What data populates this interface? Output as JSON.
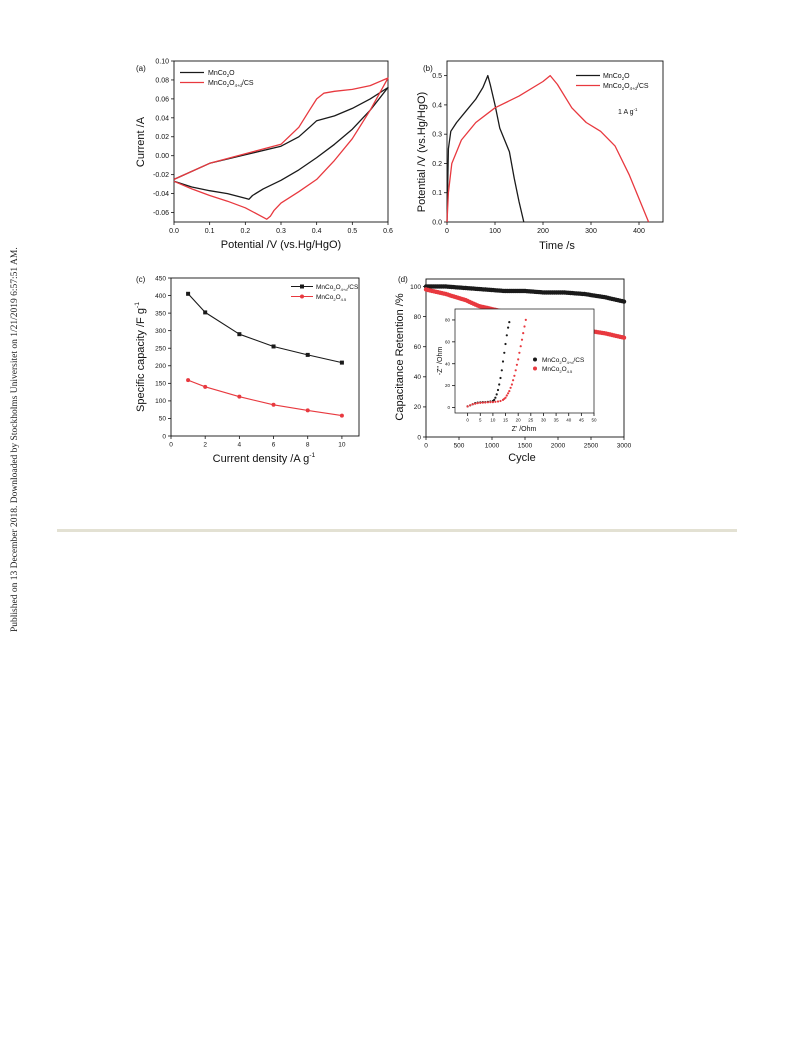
{
  "side_note": "Published on 13 December 2018. Downloaded by Stockholms Universitet on 1/21/2019 6:57:51 AM.",
  "colors": {
    "black_series": "#1a1a1a",
    "red_series": "#e8393f",
    "divider": "#e3e1d3"
  },
  "chart_data": [
    {
      "type": "line",
      "panel_label": "(a)",
      "xlabel": "Potential /V (vs.Hg/HgO)",
      "ylabel": "Current /A",
      "xlim": [
        0.0,
        0.6
      ],
      "ylim": [
        -0.07,
        0.1
      ],
      "xticks": [
        "0.0",
        "0.1",
        "0.2",
        "0.3",
        "0.4",
        "0.5",
        "0.6"
      ],
      "yticks": [
        "-0.06",
        "-0.04",
        "-0.02",
        "0.00",
        "0.02",
        "0.04",
        "0.06",
        "0.08",
        "0.10"
      ],
      "legend_position": "top-left",
      "series": [
        {
          "name": "MnCo2O",
          "legend": {
            "base": "MnCo",
            "sub1": "2",
            "mid": "O",
            "sub2": "",
            "tail": ""
          },
          "color": "black",
          "x": [
            0.0,
            0.1,
            0.2,
            0.3,
            0.35,
            0.38,
            0.4,
            0.45,
            0.5,
            0.55,
            0.6,
            0.55,
            0.5,
            0.45,
            0.4,
            0.35,
            0.3,
            0.25,
            0.22,
            0.21,
            0.2,
            0.15,
            0.1,
            0.05,
            0.0
          ],
          "y": [
            -0.025,
            -0.008,
            0.001,
            0.01,
            0.02,
            0.03,
            0.037,
            0.042,
            0.05,
            0.06,
            0.072,
            0.048,
            0.028,
            0.012,
            -0.002,
            -0.015,
            -0.026,
            -0.035,
            -0.042,
            -0.046,
            -0.045,
            -0.04,
            -0.037,
            -0.033,
            -0.027
          ]
        },
        {
          "name": "MnCo2O4+d/CS",
          "legend": {
            "base": "MnCo",
            "sub1": "2",
            "mid": "O",
            "sub2": "4+d",
            "tail": "/CS"
          },
          "color": "red",
          "x": [
            0.0,
            0.1,
            0.2,
            0.3,
            0.35,
            0.38,
            0.4,
            0.42,
            0.45,
            0.5,
            0.55,
            0.6,
            0.55,
            0.5,
            0.45,
            0.4,
            0.35,
            0.3,
            0.28,
            0.27,
            0.26,
            0.25,
            0.2,
            0.15,
            0.1,
            0.05,
            0.0
          ],
          "y": [
            -0.025,
            -0.008,
            0.002,
            0.012,
            0.03,
            0.048,
            0.06,
            0.066,
            0.068,
            0.07,
            0.074,
            0.082,
            0.048,
            0.018,
            -0.005,
            -0.025,
            -0.038,
            -0.05,
            -0.058,
            -0.064,
            -0.067,
            -0.065,
            -0.055,
            -0.048,
            -0.042,
            -0.035,
            -0.027
          ]
        }
      ]
    },
    {
      "type": "line",
      "panel_label": "(b)",
      "xlabel": "Time /s",
      "ylabel": "Potential /V (vs.Hg/HgO)",
      "xlim": [
        0,
        450
      ],
      "ylim": [
        0.0,
        0.55
      ],
      "xticks": [
        "0",
        "100",
        "200",
        "300",
        "400"
      ],
      "yticks": [
        "0.0",
        "0.1",
        "0.2",
        "0.3",
        "0.4",
        "0.5"
      ],
      "annotation": "1 A g-1",
      "annotation_parts": {
        "base": "1 A g",
        "sup": "-1"
      },
      "legend_position": "top-right",
      "series": [
        {
          "name": "MnCo2O",
          "legend": {
            "base": "MnCo",
            "sub1": "2",
            "mid": "O",
            "sub2": "",
            "tail": ""
          },
          "color": "black",
          "x": [
            0,
            3,
            8,
            20,
            40,
            60,
            75,
            85,
            90,
            100,
            110,
            120,
            130,
            140,
            150,
            160
          ],
          "y": [
            0.0,
            0.25,
            0.31,
            0.34,
            0.38,
            0.42,
            0.46,
            0.5,
            0.47,
            0.4,
            0.32,
            0.28,
            0.24,
            0.15,
            0.07,
            0.0
          ]
        },
        {
          "name": "MnCo2O4+d/CS",
          "legend": {
            "base": "MnCo",
            "sub1": "2",
            "mid": "O",
            "sub2": "4+d",
            "tail": "/CS"
          },
          "color": "red",
          "x": [
            0,
            3,
            10,
            30,
            60,
            100,
            150,
            200,
            215,
            230,
            260,
            290,
            320,
            350,
            380,
            400,
            420
          ],
          "y": [
            0.0,
            0.1,
            0.2,
            0.28,
            0.34,
            0.39,
            0.43,
            0.48,
            0.5,
            0.47,
            0.39,
            0.34,
            0.31,
            0.26,
            0.16,
            0.08,
            0.0
          ]
        }
      ]
    },
    {
      "type": "line",
      "panel_label": "(c)",
      "xlabel": "Current density /A g-1",
      "xlabel_parts": {
        "base": "Current density /A g",
        "sup": "-1"
      },
      "ylabel": "Specific capacity /F g-1",
      "ylabel_parts": {
        "base": "Specific capacity /F g",
        "sup": "-1"
      },
      "xlim": [
        0,
        11
      ],
      "ylim": [
        0,
        450
      ],
      "xticks": [
        "0",
        "2",
        "4",
        "6",
        "8",
        "10"
      ],
      "yticks": [
        "0",
        "50",
        "100",
        "150",
        "200",
        "250",
        "300",
        "350",
        "400",
        "450"
      ],
      "legend_position": "top-right",
      "series": [
        {
          "name": "MnCo2O4+d/CS",
          "legend": {
            "base": "MnCo",
            "sub1": "2",
            "mid": "O",
            "sub2": "4+d",
            "tail": "/CS"
          },
          "color": "black",
          "marker": "square",
          "x": [
            1,
            2,
            4,
            6,
            8,
            10
          ],
          "y": [
            405,
            352,
            290,
            255,
            231,
            209
          ]
        },
        {
          "name": "MnCo2O4.5",
          "legend": {
            "base": "MnCo",
            "sub1": "2",
            "mid": "O",
            "sub2": "4.5",
            "tail": ""
          },
          "color": "red",
          "marker": "circle",
          "x": [
            1,
            2,
            4,
            6,
            8,
            10
          ],
          "y": [
            159,
            140,
            112,
            89,
            73,
            58
          ]
        }
      ]
    },
    {
      "type": "scatter",
      "panel_label": "(d)",
      "xlabel": "Cycle",
      "ylabel": "Capacitance Retention /%",
      "xlim": [
        0,
        3000
      ],
      "ylim": [
        0,
        105
      ],
      "xticks": [
        "0",
        "500",
        "1000",
        "1500",
        "2000",
        "2500",
        "3000"
      ],
      "yticks": [
        "0",
        "20",
        "40",
        "60",
        "80",
        "100"
      ],
      "series": [
        {
          "name": "MnCo2O4+d/CS",
          "color": "black",
          "x": [
            0,
            300,
            600,
            900,
            1200,
            1500,
            1800,
            2100,
            2400,
            2700,
            3000
          ],
          "y": [
            100,
            100,
            99,
            98,
            97,
            97,
            96,
            96,
            95,
            93,
            90
          ]
        },
        {
          "name": "MnCo2O4.5",
          "color": "red",
          "x": [
            0,
            300,
            600,
            800,
            1000,
            1200,
            1500,
            1800,
            2100,
            2400,
            2700,
            3000
          ],
          "y": [
            98,
            95,
            91,
            87,
            85,
            83,
            81,
            77,
            74,
            71,
            69,
            66
          ]
        }
      ],
      "inset": {
        "type": "scatter",
        "xlabel": "Z' /Ohm",
        "ylabel": "-Z'' /Ohm",
        "xlim": [
          -5,
          50
        ],
        "ylim": [
          -5,
          90
        ],
        "xticks": [
          "0",
          "5",
          "10",
          "15",
          "20",
          "25",
          "30",
          "35",
          "40",
          "45",
          "50"
        ],
        "yticks": [
          "0",
          "20",
          "40",
          "60",
          "80"
        ],
        "legend_position": "right",
        "series": [
          {
            "name": "MnCo2O4+d/CS",
            "legend": {
              "base": "MnCo",
              "sub1": "2",
              "mid": "O",
              "sub2": "4+d",
              "tail": "/CS"
            },
            "color": "black",
            "x": [
              0,
              1,
              2,
              3,
              4,
              5,
              6,
              7,
              8,
              9,
              10,
              10.5,
              11,
              11.5,
              12,
              12.5,
              13,
              13.5,
              14,
              14.5,
              15,
              15.5,
              16,
              16.5
            ],
            "y": [
              1,
              2,
              3,
              4,
              4.5,
              4.8,
              5,
              5,
              5.2,
              5.5,
              6,
              7,
              9,
              12,
              16,
              21,
              27,
              34,
              42,
              50,
              58,
              66,
              73,
              78
            ]
          },
          {
            "name": "MnCo2O4.5",
            "legend": {
              "base": "MnCo",
              "sub1": "2",
              "mid": "O",
              "sub2": "4.5",
              "tail": ""
            },
            "color": "red",
            "x": [
              0,
              1,
              2,
              3,
              4,
              5,
              6,
              7,
              8,
              9,
              10,
              11,
              12,
              13,
              14,
              14.5,
              15,
              15.5,
              16,
              16.5,
              17,
              17.5,
              18,
              18.5,
              19,
              19.5,
              20,
              20.5,
              21,
              21.5,
              22,
              22.5,
              23
            ],
            "y": [
              1,
              2,
              3,
              3.5,
              4,
              4.2,
              4.5,
              4.6,
              4.8,
              5,
              5,
              5.2,
              5.5,
              6,
              7,
              8,
              9,
              11,
              13,
              15,
              18,
              21,
              25,
              29,
              34,
              39,
              44,
              50,
              56,
              62,
              68,
              74,
              80
            ]
          }
        ]
      }
    }
  ]
}
